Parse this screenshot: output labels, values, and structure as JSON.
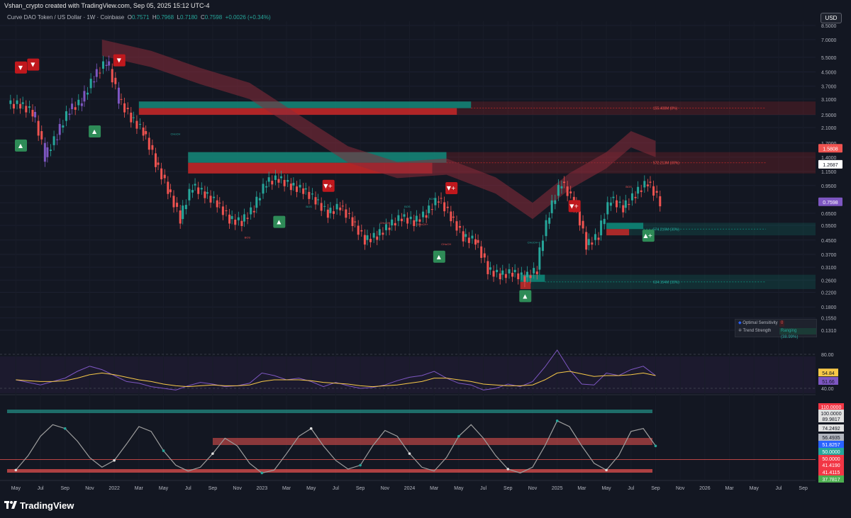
{
  "header": {
    "credit": "Vshan_crypto created with TradingView.com, Sep 05, 2025 15:12 UTC-4",
    "symbol": "Curve DAO Token / US Dollar · 1W · Coinbase",
    "o_label": "O",
    "o_value": "0.7571",
    "h_label": "H",
    "h_value": "0.7968",
    "l_label": "L",
    "l_value": "0.7180",
    "c_label": "C",
    "c_value": "0.7598",
    "change": "+0.0026 (+0.34%)",
    "currency_button": "USD"
  },
  "colors": {
    "background": "#131722",
    "bull": "#26a69a",
    "bear": "#ef5350",
    "purple": "#7e57c2",
    "zone_green": "#0e8a7a",
    "zone_red": "#c62828",
    "signal_green": "#2e8b57",
    "signal_red": "#c0181d"
  },
  "chart_data": [
    {
      "type": "line",
      "name": "price",
      "log_scale": true,
      "ylim": [
        0.12,
        9.0
      ],
      "x_range": [
        "2021-04",
        "2026-10"
      ],
      "x_ticks": [
        "May",
        "Jul",
        "Sep",
        "Nov",
        "2022",
        "Mar",
        "May",
        "Jul",
        "Sep",
        "Nov",
        "2023",
        "Mar",
        "May",
        "Jul",
        "Sep",
        "Nov",
        "2024",
        "Mar",
        "May",
        "Jul",
        "Sep",
        "Nov",
        "2025",
        "Mar",
        "May",
        "Jul",
        "Sep",
        "Nov",
        "2026",
        "Mar",
        "May",
        "Jul",
        "Sep"
      ],
      "y_ticks": [
        "8.5000",
        "7.0000",
        "5.5000",
        "4.5000",
        "3.7000",
        "3.1000",
        "2.5000",
        "2.1000",
        "1.7000",
        "1.4000",
        "1.1500",
        "0.9500",
        "0.7500",
        "0.6500",
        "0.5500",
        "0.4500",
        "0.3700",
        "0.3100",
        "0.2600",
        "0.2200",
        "0.1800",
        "0.1550",
        "0.1310"
      ],
      "price_labels": [
        {
          "text": "1.5808",
          "color": "#ef5350"
        },
        {
          "text": "1.2687",
          "color": "#ffffff"
        },
        {
          "text": "0.7598",
          "color": "#7e57c2"
        }
      ],
      "x": [
        "2021-05",
        "2021-06",
        "2021-07",
        "2021-08",
        "2021-09",
        "2021-10",
        "2021-11",
        "2021-12",
        "2022-01",
        "2022-02",
        "2022-03",
        "2022-04",
        "2022-05",
        "2022-06",
        "2022-07",
        "2022-08",
        "2022-09",
        "2022-10",
        "2022-11",
        "2022-12",
        "2023-01",
        "2023-02",
        "2023-03",
        "2023-04",
        "2023-05",
        "2023-06",
        "2023-07",
        "2023-08",
        "2023-09",
        "2023-10",
        "2023-11",
        "2023-12",
        "2024-01",
        "2024-02",
        "2024-03",
        "2024-04",
        "2024-05",
        "2024-06",
        "2024-07",
        "2024-08",
        "2024-09",
        "2024-10",
        "2024-11",
        "2024-12",
        "2025-01",
        "2025-02",
        "2025-03",
        "2025-04",
        "2025-05",
        "2025-06",
        "2025-07",
        "2025-08",
        "2025-09"
      ],
      "values": [
        2.9,
        2.6,
        1.4,
        1.9,
        2.7,
        3.0,
        4.2,
        5.2,
        3.1,
        2.4,
        2.0,
        1.3,
        0.9,
        0.6,
        0.95,
        0.85,
        0.75,
        0.6,
        0.58,
        0.7,
        1.0,
        1.05,
        0.95,
        0.9,
        0.78,
        0.65,
        0.72,
        0.58,
        0.45,
        0.48,
        0.55,
        0.62,
        0.58,
        0.65,
        0.8,
        0.62,
        0.47,
        0.45,
        0.3,
        0.28,
        0.29,
        0.27,
        0.3,
        0.65,
        1.0,
        0.75,
        0.42,
        0.48,
        0.8,
        0.7,
        0.85,
        1.0,
        0.76
      ],
      "signals": [
        {
          "x": "2021-04",
          "label": "▼",
          "dir": "down",
          "y": 4.8
        },
        {
          "x": "2021-05",
          "label": "▼",
          "dir": "down",
          "y": 5.0
        },
        {
          "x": "2021-04",
          "label": "▲",
          "dir": "up",
          "y": 1.65
        },
        {
          "x": "2021-10",
          "label": "▲",
          "dir": "up",
          "y": 2.0
        },
        {
          "x": "2021-12",
          "label": "▼",
          "dir": "down",
          "y": 5.3
        },
        {
          "x": "2023-05",
          "label": "▼+",
          "dir": "down",
          "y": 0.95
        },
        {
          "x": "2023-01",
          "label": "▲",
          "dir": "up",
          "y": 0.58
        },
        {
          "x": "2024-03",
          "label": "▼+",
          "dir": "down",
          "y": 0.92
        },
        {
          "x": "2024-02",
          "label": "▲",
          "dir": "up",
          "y": 0.36
        },
        {
          "x": "2024-09",
          "label": "▲",
          "dir": "up",
          "y": 0.21
        },
        {
          "x": "2025-01",
          "label": "▼+",
          "dir": "down",
          "y": 0.72
        },
        {
          "x": "2025-07",
          "label": "▲+",
          "dir": "up",
          "y": 0.48
        }
      ],
      "zones": [
        {
          "label": "155.408M (8%)",
          "color": "red",
          "y": [
            2.5,
            3.0
          ]
        },
        {
          "label": "572.213M (30%)",
          "color": "red",
          "y": [
            1.12,
            1.5
          ]
        },
        {
          "label": "574.219M (30%)",
          "color": "green",
          "y": [
            0.48,
            0.57
          ]
        },
        {
          "label": "634.154M (33%)",
          "color": "green",
          "y": [
            0.23,
            0.28
          ]
        }
      ],
      "annotations": [
        "CHoCH",
        "BOS",
        "BOS",
        "CHoCH",
        "BOS",
        "CHoCH+",
        "BOS",
        "CHoCH",
        "CHoCH+",
        "BOS"
      ]
    },
    {
      "type": "line",
      "name": "rsi",
      "ylim": [
        30,
        90
      ],
      "y_ticks": [
        "80.00",
        "40.00"
      ],
      "price_labels": [
        {
          "text": "54.84",
          "color": "#f7c948"
        },
        {
          "text": "51.66",
          "color": "#7e57c2"
        }
      ],
      "values": [
        50,
        47,
        44,
        48,
        52,
        60,
        66,
        62,
        55,
        48,
        46,
        42,
        40,
        38,
        43,
        47,
        45,
        42,
        43,
        46,
        58,
        55,
        50,
        52,
        48,
        42,
        47,
        43,
        40,
        41,
        44,
        49,
        53,
        55,
        60,
        52,
        46,
        44,
        38,
        40,
        45,
        42,
        48,
        65,
        85,
        62,
        45,
        44,
        58,
        55,
        62,
        66,
        55
      ],
      "ma": [
        50,
        49,
        48,
        48,
        49,
        52,
        56,
        58,
        56,
        53,
        50,
        48,
        45,
        43,
        42,
        43,
        44,
        43,
        43,
        44,
        48,
        50,
        50,
        50,
        49,
        47,
        46,
        45,
        43,
        42,
        43,
        44,
        46,
        48,
        52,
        52,
        50,
        48,
        45,
        44,
        43,
        43,
        44,
        50,
        58,
        60,
        57,
        54,
        55,
        55,
        56,
        58,
        55
      ]
    },
    {
      "type": "line",
      "name": "oscillator",
      "ylim": [
        35,
        112
      ],
      "y_ticks": [
        "110.0000",
        "100.0000",
        "89.9817",
        "74.2492",
        "56.4935",
        "51.8257",
        "50.0000",
        "50.0000",
        "41.4190",
        "41.4115",
        "37.7817"
      ],
      "label_colors": [
        "#f23645",
        "#e0e0e0",
        "#e0e0e0",
        "#e0e0e0",
        "#b2b5be",
        "#2962ff",
        "#26a69a",
        "#f23645",
        "#f23645",
        "#f23645",
        "#4caf50"
      ],
      "values": [
        45,
        60,
        80,
        92,
        88,
        75,
        58,
        48,
        55,
        72,
        90,
        85,
        65,
        50,
        44,
        48,
        62,
        78,
        70,
        52,
        42,
        45,
        62,
        80,
        88,
        70,
        55,
        46,
        50,
        70,
        86,
        80,
        62,
        48,
        44,
        58,
        80,
        92,
        78,
        60,
        46,
        42,
        48,
        70,
        96,
        90,
        70,
        52,
        45,
        60,
        85,
        88,
        70
      ]
    }
  ],
  "x_axis": [
    "May",
    "Jul",
    "Sep",
    "Nov",
    "2022",
    "Mar",
    "May",
    "Jul",
    "Sep",
    "Nov",
    "2023",
    "Mar",
    "May",
    "Jul",
    "Sep",
    "Nov",
    "2024",
    "Mar",
    "May",
    "Jul",
    "Sep",
    "Nov",
    "2025",
    "Mar",
    "May",
    "Jul",
    "Sep",
    "Nov",
    "2026",
    "Mar",
    "May",
    "Jul",
    "Sep"
  ],
  "indicator_panel": {
    "row1_label": "Optimal Sensitivity",
    "row1_value": "0",
    "row2_label": "Trend Strength",
    "row2_value": "Ranging (38.99%)"
  },
  "footer": {
    "brand": "TradingView"
  }
}
